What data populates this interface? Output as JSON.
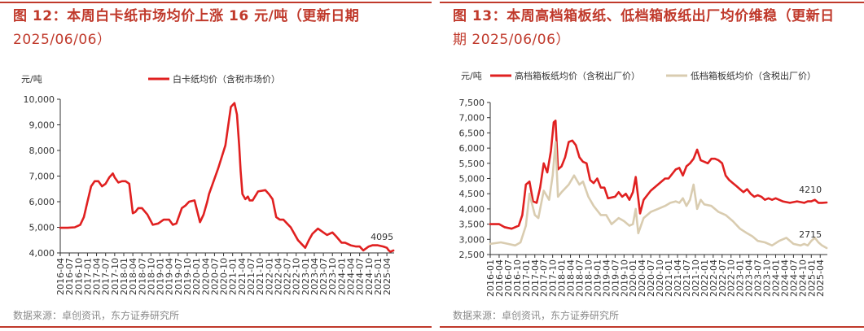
{
  "colors": {
    "accent": "#c0392b",
    "series_red": "#e02020",
    "series_beige": "#d9ccb0",
    "source": "#8a8a8a"
  },
  "chart_data": [
    {
      "type": "line",
      "title": "图 12：本周白卡纸市场均价上涨 16 元/吨（更新日期",
      "title_date": "2025/06/06）",
      "unit": "元/吨",
      "ylim": [
        4000,
        10000
      ],
      "yticks": [
        4000,
        5000,
        6000,
        7000,
        8000,
        9000,
        10000
      ],
      "ytick_labels": [
        "4,000",
        "5,000",
        "6,000",
        "7,000",
        "8,000",
        "9,000",
        "10,000"
      ],
      "xlim": [
        2016.25,
        2025.45
      ],
      "xticks": [
        "2016-04",
        "2016-07",
        "2016-10",
        "2017-01",
        "2017-04",
        "2017-07",
        "2017-10",
        "2018-01",
        "2018-04",
        "2018-07",
        "2018-10",
        "2019-01",
        "2019-04",
        "2019-07",
        "2019-10",
        "2020-01",
        "2020-04",
        "2020-07",
        "2020-10",
        "2021-01",
        "2021-04",
        "2021-07",
        "2021-10",
        "2022-01",
        "2022-04",
        "2022-07",
        "2022-10",
        "2023-01",
        "2023-04",
        "2023-07",
        "2023-10",
        "2024-01",
        "2024-04",
        "2024-07",
        "2024-10",
        "2025-01",
        "2025-04"
      ],
      "series": [
        {
          "name": "白卡纸均价（含税市场价）",
          "color": "#e02020",
          "end_label": "4095",
          "x": [
            2016.25,
            2016.45,
            2016.65,
            2016.8,
            2016.9,
            2017.0,
            2017.1,
            2017.2,
            2017.3,
            2017.4,
            2017.5,
            2017.6,
            2017.7,
            2017.75,
            2017.85,
            2017.95,
            2018.05,
            2018.15,
            2018.25,
            2018.32,
            2018.4,
            2018.5,
            2018.65,
            2018.8,
            2018.95,
            2019.1,
            2019.25,
            2019.35,
            2019.45,
            2019.6,
            2019.7,
            2019.8,
            2019.95,
            2020.1,
            2020.2,
            2020.3,
            2020.35,
            2020.45,
            2020.6,
            2020.8,
            2020.95,
            2021.05,
            2021.12,
            2021.18,
            2021.22,
            2021.27,
            2021.35,
            2021.42,
            2021.47,
            2021.55,
            2021.7,
            2021.9,
            2022.0,
            2022.1,
            2022.2,
            2022.3,
            2022.4,
            2022.5,
            2022.6,
            2022.8,
            2023.0,
            2023.1,
            2023.2,
            2023.35,
            2023.5,
            2023.6,
            2023.75,
            2023.85,
            2024.0,
            2024.1,
            2024.25,
            2024.4,
            2024.5,
            2024.6,
            2024.75,
            2024.85,
            2025.0,
            2025.15,
            2025.25,
            2025.3,
            2025.35,
            2025.43
          ],
          "values": [
            4980,
            4980,
            5000,
            5100,
            5400,
            6000,
            6600,
            6800,
            6800,
            6600,
            6700,
            6950,
            7100,
            6950,
            6750,
            6800,
            6800,
            6700,
            5550,
            5600,
            5750,
            5750,
            5500,
            5100,
            5150,
            5300,
            5300,
            5100,
            5150,
            5750,
            5850,
            6000,
            6050,
            5200,
            5500,
            6000,
            6300,
            6700,
            7300,
            8200,
            9700,
            9850,
            9400,
            8200,
            7200,
            6300,
            6100,
            6200,
            6050,
            6050,
            6400,
            6450,
            6300,
            6100,
            5400,
            5300,
            5300,
            5150,
            5000,
            4500,
            4200,
            4500,
            4750,
            4950,
            4800,
            4700,
            4800,
            4650,
            4400,
            4400,
            4300,
            4250,
            4250,
            4100,
            4250,
            4300,
            4300,
            4250,
            4200,
            4100,
            4050,
            4095
          ]
        }
      ],
      "source": "数据来源：卓创资讯，东方证券研究所"
    },
    {
      "type": "line",
      "title": "图 13：本周高档箱板纸、低档箱板纸出厂均价维稳（更新日",
      "title_date": "期 2025/06/06）",
      "unit": "元/吨",
      "ylim": [
        2500,
        7500
      ],
      "yticks": [
        2500,
        3000,
        3500,
        4000,
        4500,
        5000,
        5500,
        6000,
        6500,
        7000,
        7500
      ],
      "ytick_labels": [
        "2,500",
        "3,000",
        "3,500",
        "4,000",
        "4,500",
        "5,000",
        "5,500",
        "6,000",
        "6,500",
        "7,000",
        "7,500"
      ],
      "xlim": [
        2016.0,
        2025.45
      ],
      "xticks": [
        "2016-01",
        "2016-04",
        "2016-07",
        "2016-10",
        "2017-01",
        "2017-04",
        "2017-07",
        "2017-10",
        "2018-01",
        "2018-04",
        "2018-07",
        "2018-10",
        "2019-01",
        "2019-04",
        "2019-07",
        "2019-10",
        "2020-01",
        "2020-04",
        "2020-07",
        "2020-10",
        "2021-01",
        "2021-04",
        "2021-07",
        "2021-10",
        "2022-01",
        "2022-04",
        "2022-07",
        "2022-10",
        "2023-01",
        "2023-04",
        "2023-07",
        "2023-10",
        "2024-01",
        "2024-04",
        "2024-07",
        "2024-10",
        "2025-01",
        "2025-04"
      ],
      "series": [
        {
          "name": "高档箱板纸均价（含税出厂价）",
          "color": "#e02020",
          "end_label": "4210",
          "x": [
            2016.0,
            2016.25,
            2016.4,
            2016.6,
            2016.8,
            2016.9,
            2017.0,
            2017.1,
            2017.2,
            2017.3,
            2017.4,
            2017.5,
            2017.6,
            2017.7,
            2017.78,
            2017.83,
            2017.9,
            2018.0,
            2018.1,
            2018.2,
            2018.3,
            2018.4,
            2018.5,
            2018.6,
            2018.7,
            2018.8,
            2018.9,
            2019.0,
            2019.1,
            2019.2,
            2019.3,
            2019.5,
            2019.6,
            2019.7,
            2019.8,
            2019.9,
            2020.0,
            2020.08,
            2020.2,
            2020.3,
            2020.5,
            2020.7,
            2020.9,
            2021.0,
            2021.2,
            2021.3,
            2021.4,
            2021.5,
            2021.6,
            2021.7,
            2021.8,
            2021.9,
            2022.0,
            2022.1,
            2022.2,
            2022.3,
            2022.4,
            2022.5,
            2022.6,
            2022.7,
            2022.8,
            2022.9,
            2023.0,
            2023.1,
            2023.2,
            2023.3,
            2023.4,
            2023.5,
            2023.6,
            2023.7,
            2023.8,
            2023.9,
            2024.0,
            2024.2,
            2024.4,
            2024.6,
            2024.8,
            2024.9,
            2025.0,
            2025.1,
            2025.2,
            2025.3,
            2025.43
          ],
          "values": [
            3500,
            3500,
            3400,
            3350,
            3450,
            3800,
            4800,
            4900,
            4250,
            4200,
            4700,
            5500,
            5200,
            5900,
            6850,
            6900,
            5300,
            5400,
            5700,
            6200,
            6250,
            6100,
            5700,
            5550,
            5500,
            4950,
            4850,
            5000,
            4700,
            4700,
            4350,
            4400,
            4550,
            4400,
            4500,
            4300,
            4550,
            5050,
            3850,
            4300,
            4600,
            4800,
            5000,
            5000,
            5300,
            5350,
            5100,
            5400,
            5500,
            5650,
            5950,
            5600,
            5550,
            5500,
            5650,
            5650,
            5600,
            5500,
            5100,
            4950,
            4850,
            4750,
            4650,
            4550,
            4650,
            4500,
            4400,
            4450,
            4400,
            4300,
            4350,
            4300,
            4350,
            4250,
            4200,
            4250,
            4200,
            4250,
            4250,
            4300,
            4200,
            4200,
            4210
          ]
        },
        {
          "name": "低档箱板纸均价（含税出厂价）",
          "color": "#d9ccb0",
          "end_label": "2715",
          "x": [
            2016.0,
            2016.3,
            2016.5,
            2016.7,
            2016.85,
            2017.0,
            2017.1,
            2017.25,
            2017.35,
            2017.5,
            2017.65,
            2017.75,
            2017.83,
            2017.9,
            2018.0,
            2018.2,
            2018.35,
            2018.5,
            2018.6,
            2018.75,
            2018.9,
            2019.1,
            2019.25,
            2019.4,
            2019.6,
            2019.75,
            2019.9,
            2020.0,
            2020.08,
            2020.15,
            2020.3,
            2020.5,
            2020.7,
            2020.9,
            2021.05,
            2021.2,
            2021.3,
            2021.4,
            2021.5,
            2021.6,
            2021.7,
            2021.8,
            2021.9,
            2022.0,
            2022.2,
            2022.4,
            2022.6,
            2022.8,
            2023.0,
            2023.2,
            2023.35,
            2023.5,
            2023.7,
            2023.9,
            2024.1,
            2024.3,
            2024.5,
            2024.7,
            2024.8,
            2024.9,
            2025.0,
            2025.1,
            2025.2,
            2025.3,
            2025.43
          ],
          "values": [
            2850,
            2900,
            2850,
            2800,
            2900,
            3450,
            4500,
            3800,
            3700,
            4600,
            4300,
            5100,
            6200,
            4400,
            4550,
            4800,
            5100,
            4800,
            4900,
            4400,
            4100,
            3800,
            3800,
            3500,
            3700,
            3600,
            3450,
            3500,
            4000,
            3200,
            3700,
            3900,
            4000,
            4100,
            4200,
            4250,
            4200,
            4350,
            4100,
            4300,
            4800,
            4000,
            4300,
            4150,
            4100,
            3900,
            3800,
            3600,
            3350,
            3200,
            3100,
            2950,
            2900,
            2800,
            2950,
            3050,
            2850,
            2800,
            2850,
            2800,
            2950,
            3050,
            2900,
            2800,
            2715
          ]
        }
      ],
      "source": "数据来源：卓创资讯，东方证券研究所"
    }
  ]
}
